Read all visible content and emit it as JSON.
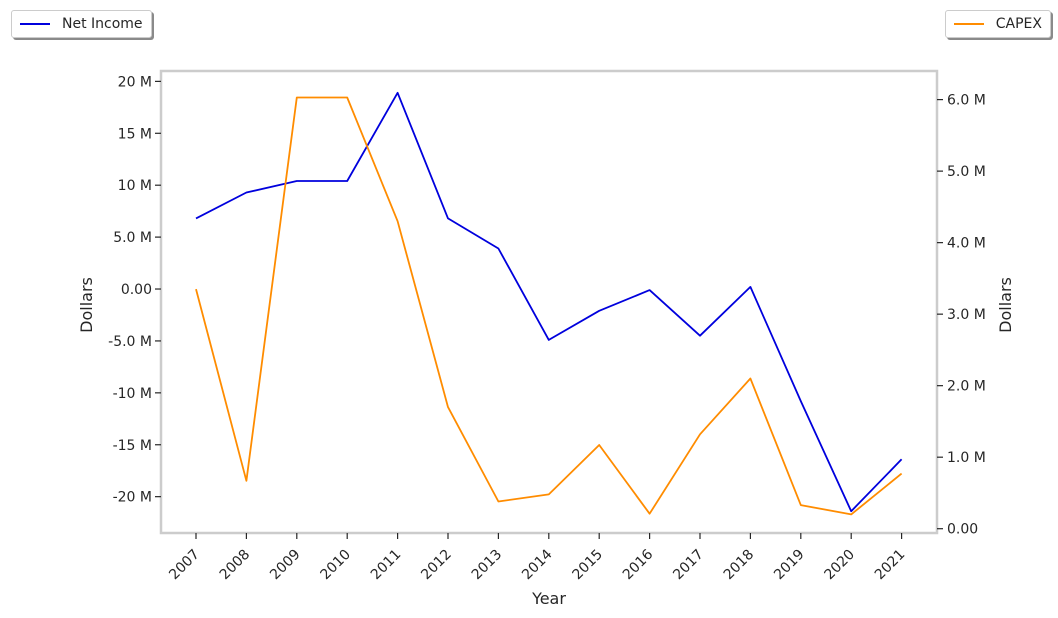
{
  "chart_data": {
    "type": "line",
    "title": "",
    "xlabel": "Year",
    "ylabel_left": "Dollars",
    "ylabel_right": "Dollars",
    "x": [
      "2007",
      "2008",
      "2009",
      "2010",
      "2011",
      "2012",
      "2013",
      "2014",
      "2015",
      "2016",
      "2017",
      "2018",
      "2019",
      "2020",
      "2021"
    ],
    "left_ylim": [
      -23.5,
      21
    ],
    "right_ylim": [
      -0.06,
      6.4
    ],
    "left_ticks": [
      {
        "value": 20,
        "label": "20 M"
      },
      {
        "value": 15,
        "label": "15 M"
      },
      {
        "value": 10,
        "label": "10 M"
      },
      {
        "value": 5,
        "label": "5.0 M"
      },
      {
        "value": 0,
        "label": "0.00"
      },
      {
        "value": -5,
        "label": "-5.0 M"
      },
      {
        "value": -10,
        "label": "-10 M"
      },
      {
        "value": -15,
        "label": "-15 M"
      },
      {
        "value": -20,
        "label": "-20 M"
      }
    ],
    "right_ticks": [
      {
        "value": 6,
        "label": "6.0 M"
      },
      {
        "value": 5,
        "label": "5.0 M"
      },
      {
        "value": 4,
        "label": "4.0 M"
      },
      {
        "value": 3,
        "label": "3.0 M"
      },
      {
        "value": 2,
        "label": "2.0 M"
      },
      {
        "value": 1,
        "label": "1.0 M"
      },
      {
        "value": 0,
        "label": "0.00"
      }
    ],
    "series": [
      {
        "name": "Net Income",
        "axis": "left",
        "color": "#0000dd",
        "values": [
          6.8,
          9.3,
          10.4,
          10.4,
          18.9,
          6.8,
          3.9,
          -4.9,
          -2.1,
          -0.1,
          -4.5,
          0.2,
          -10.8,
          -21.4,
          -16.4
        ]
      },
      {
        "name": "CAPEX",
        "axis": "right",
        "color": "#ff8c00",
        "values": [
          3.35,
          0.67,
          6.03,
          6.03,
          4.3,
          1.7,
          0.38,
          0.48,
          1.17,
          0.21,
          1.32,
          2.1,
          0.33,
          0.2,
          0.77
        ]
      }
    ],
    "legend": [
      "top-left",
      "top-right"
    ],
    "grid": false
  }
}
